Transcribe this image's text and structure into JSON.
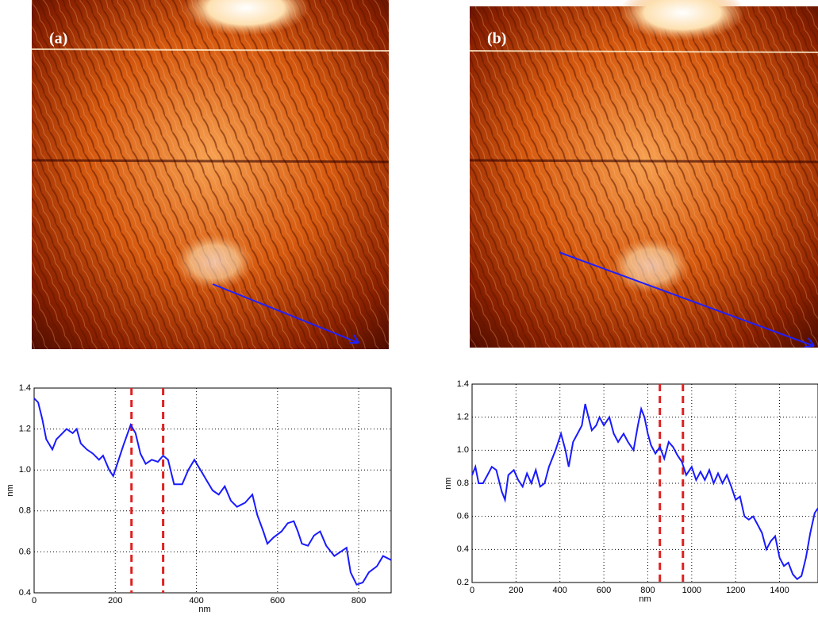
{
  "panel_labels": [
    "(a)",
    "(b)"
  ],
  "chart_data": [
    {
      "type": "line",
      "xlabel": "nm",
      "ylabel": "nm",
      "color": "#1a1aff",
      "grid": true,
      "xlim": [
        0,
        880
      ],
      "xticks": [
        0,
        200,
        400,
        600,
        800
      ],
      "ylim": [
        0.4,
        1.4
      ],
      "yticks": [
        0.4,
        0.6,
        0.8,
        {
          "value": 1,
          "label": "1.0"
        },
        1.2,
        1.4
      ],
      "markers": [
        240,
        318
      ],
      "marker_color": "#e02020",
      "x": [
        0,
        10,
        20,
        30,
        45,
        55,
        70,
        80,
        95,
        105,
        115,
        130,
        145,
        160,
        170,
        185,
        195,
        205,
        220,
        238,
        250,
        262,
        275,
        290,
        305,
        318,
        330,
        345,
        365,
        380,
        395,
        410,
        425,
        440,
        455,
        470,
        485,
        500,
        520,
        538,
        550,
        565,
        575,
        590,
        610,
        625,
        640,
        650,
        660,
        675,
        690,
        705,
        720,
        740,
        755,
        770,
        780,
        795,
        810,
        825,
        845,
        860,
        880
      ],
      "values": [
        1.35,
        1.33,
        1.25,
        1.15,
        1.1,
        1.15,
        1.18,
        1.2,
        1.18,
        1.2,
        1.13,
        1.1,
        1.08,
        1.05,
        1.07,
        1.0,
        0.97,
        1.03,
        1.12,
        1.22,
        1.18,
        1.08,
        1.03,
        1.05,
        1.04,
        1.07,
        1.05,
        0.93,
        0.93,
        1.0,
        1.05,
        1.0,
        0.95,
        0.9,
        0.88,
        0.92,
        0.85,
        0.82,
        0.84,
        0.88,
        0.78,
        0.7,
        0.64,
        0.67,
        0.7,
        0.74,
        0.75,
        0.7,
        0.64,
        0.63,
        0.68,
        0.7,
        0.63,
        0.58,
        0.6,
        0.62,
        0.5,
        0.44,
        0.45,
        0.5,
        0.53,
        0.58,
        0.56
      ]
    },
    {
      "type": "line",
      "xlabel": "nm",
      "ylabel": "nm",
      "color": "#1a1aff",
      "grid": true,
      "xlim": [
        0,
        1575
      ],
      "xticks": [
        0,
        200,
        400,
        600,
        800,
        1000,
        1200,
        1400
      ],
      "ylim": [
        0.2,
        1.4
      ],
      "yticks": [
        0.2,
        0.4,
        0.6,
        0.8,
        {
          "value": 1,
          "label": "1.0"
        },
        1.2,
        1.4
      ],
      "markers": [
        855,
        960
      ],
      "marker_color": "#e02020",
      "x": [
        0,
        15,
        30,
        50,
        70,
        90,
        110,
        135,
        150,
        165,
        190,
        210,
        230,
        250,
        270,
        290,
        310,
        330,
        350,
        380,
        405,
        425,
        440,
        460,
        480,
        500,
        515,
        530,
        545,
        565,
        580,
        600,
        625,
        645,
        665,
        690,
        710,
        735,
        755,
        770,
        785,
        800,
        815,
        835,
        855,
        875,
        895,
        915,
        935,
        955,
        975,
        1000,
        1020,
        1040,
        1060,
        1080,
        1100,
        1120,
        1140,
        1160,
        1180,
        1200,
        1220,
        1240,
        1260,
        1280,
        1300,
        1320,
        1340,
        1360,
        1380,
        1400,
        1420,
        1440,
        1460,
        1480,
        1500,
        1520,
        1540,
        1560,
        1575
      ],
      "values": [
        0.85,
        0.9,
        0.8,
        0.8,
        0.85,
        0.9,
        0.88,
        0.75,
        0.7,
        0.85,
        0.88,
        0.82,
        0.78,
        0.86,
        0.8,
        0.88,
        0.78,
        0.8,
        0.9,
        1.0,
        1.1,
        1.0,
        0.9,
        1.05,
        1.1,
        1.15,
        1.28,
        1.2,
        1.12,
        1.15,
        1.2,
        1.15,
        1.2,
        1.1,
        1.05,
        1.1,
        1.05,
        1.0,
        1.15,
        1.25,
        1.2,
        1.1,
        1.03,
        0.98,
        1.02,
        0.95,
        1.05,
        1.02,
        0.97,
        0.93,
        0.85,
        0.9,
        0.82,
        0.87,
        0.82,
        0.88,
        0.8,
        0.86,
        0.8,
        0.85,
        0.78,
        0.7,
        0.72,
        0.6,
        0.58,
        0.6,
        0.55,
        0.5,
        0.4,
        0.45,
        0.48,
        0.35,
        0.3,
        0.32,
        0.25,
        0.22,
        0.24,
        0.35,
        0.5,
        0.62,
        0.65
      ]
    }
  ]
}
